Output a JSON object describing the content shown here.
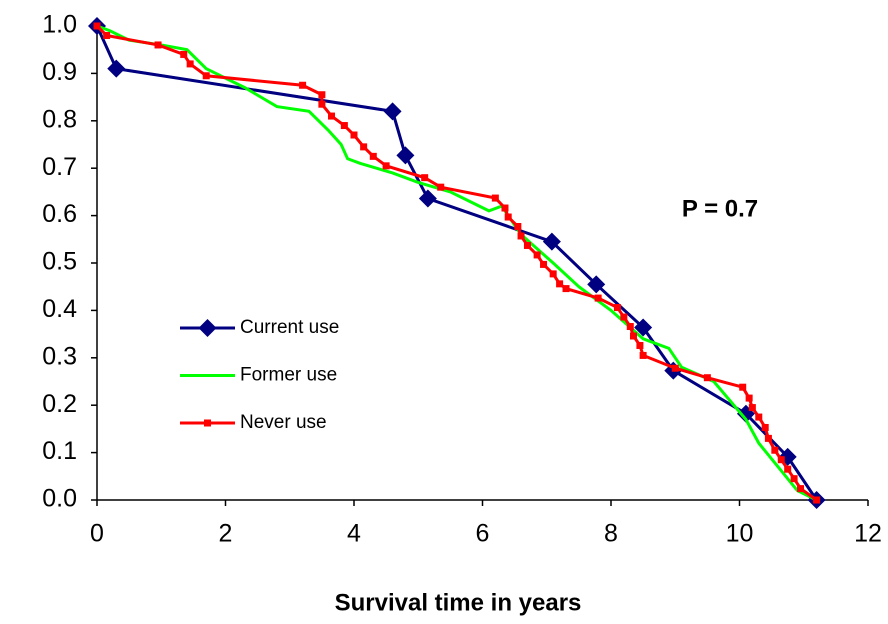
{
  "chart_data": {
    "type": "line",
    "xlabel": "Survival time in years",
    "annotation": "P = 0.7",
    "xlim": [
      0,
      12
    ],
    "xticks": [
      0,
      2,
      4,
      6,
      8,
      10,
      12
    ],
    "ylim": [
      0,
      1
    ],
    "yticks": [
      {
        "value": 0,
        "label": "0.0"
      },
      0.1,
      0.2,
      0.3,
      0.4,
      0.5,
      0.6,
      0.7,
      0.8,
      0.9,
      {
        "value": 1,
        "label": "1.0"
      }
    ],
    "legend_position": "center left",
    "series": [
      {
        "name": "Current use",
        "color": "#000080",
        "marker": "diamond",
        "x": [
          0,
          0.3,
          4.6,
          4.8,
          5.15,
          7.08,
          7.77,
          8.5,
          8.97,
          10.1,
          10.75,
          11.2
        ],
        "values": [
          1.0,
          0.91,
          0.82,
          0.727,
          0.636,
          0.545,
          0.455,
          0.364,
          0.273,
          0.182,
          0.091,
          0.0
        ]
      },
      {
        "name": "Former use",
        "color": "#00ff00",
        "marker": null,
        "x": [
          0,
          0.2,
          0.5,
          1.0,
          1.4,
          1.7,
          2.3,
          2.8,
          3.3,
          3.6,
          3.8,
          3.9,
          4.1,
          4.6,
          5.0,
          5.5,
          6.1,
          6.3,
          6.6,
          7.1,
          7.5,
          8.0,
          8.5,
          8.9,
          9.1,
          9.6,
          10.1,
          10.3,
          10.6,
          10.9,
          11.2
        ],
        "values": [
          1.0,
          0.99,
          0.97,
          0.96,
          0.95,
          0.91,
          0.87,
          0.83,
          0.82,
          0.78,
          0.75,
          0.72,
          0.71,
          0.69,
          0.67,
          0.65,
          0.61,
          0.62,
          0.56,
          0.5,
          0.45,
          0.4,
          0.34,
          0.32,
          0.28,
          0.25,
          0.17,
          0.12,
          0.07,
          0.02,
          0.0
        ]
      },
      {
        "name": "Never use",
        "color": "#ff0000",
        "marker": "square",
        "x": [
          0,
          0.15,
          0.95,
          1.35,
          1.45,
          1.7,
          3.2,
          3.5,
          3.5,
          3.65,
          3.85,
          4.0,
          4.15,
          4.3,
          4.5,
          5.1,
          5.35,
          6.2,
          6.35,
          6.4,
          6.55,
          6.6,
          6.7,
          6.85,
          6.95,
          7.1,
          7.2,
          7.3,
          7.8,
          8.1,
          8.2,
          8.3,
          8.35,
          8.45,
          8.5,
          9.0,
          9.5,
          10.05,
          10.15,
          10.2,
          10.3,
          10.4,
          10.45,
          10.55,
          10.65,
          10.75,
          10.85,
          10.95,
          11.2
        ],
        "values": [
          1.0,
          0.98,
          0.96,
          0.94,
          0.92,
          0.895,
          0.875,
          0.855,
          0.835,
          0.81,
          0.79,
          0.77,
          0.745,
          0.725,
          0.705,
          0.68,
          0.66,
          0.637,
          0.616,
          0.597,
          0.577,
          0.557,
          0.537,
          0.517,
          0.497,
          0.477,
          0.456,
          0.446,
          0.426,
          0.406,
          0.386,
          0.366,
          0.346,
          0.326,
          0.305,
          0.278,
          0.258,
          0.238,
          0.215,
          0.195,
          0.175,
          0.153,
          0.13,
          0.105,
          0.085,
          0.065,
          0.045,
          0.024,
          0.0
        ]
      }
    ]
  }
}
